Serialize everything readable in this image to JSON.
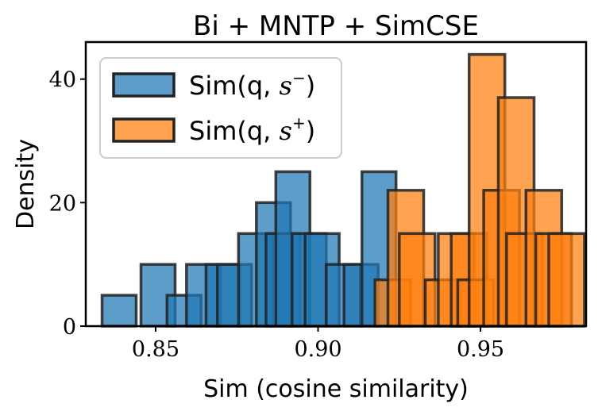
{
  "chart_data": {
    "type": "bar",
    "title": "Bi + MNTP + SimCSE",
    "xlabel": "Sim (cosine similarity)",
    "ylabel": "Density",
    "xlim": [
      0.8285,
      0.9825
    ],
    "ylim": [
      0,
      46
    ],
    "xticks": [
      0.85,
      0.9,
      0.95
    ],
    "xtick_labels": [
      "0.85",
      "0.90",
      "0.95"
    ],
    "yticks": [
      0,
      20,
      40
    ],
    "ytick_labels": [
      "0",
      "20",
      "40"
    ],
    "legend_position": "top-left",
    "series": [
      {
        "name": "Sim(q, s−)",
        "legend_prefix": "Sim(q, ",
        "legend_var": "s",
        "legend_sup": "−",
        "legend_suffix": ")",
        "color": "#1f77b4",
        "bars": [
          {
            "left": 0.8335,
            "right": 0.844,
            "height": 5
          },
          {
            "left": 0.8455,
            "right": 0.856,
            "height": 10
          },
          {
            "left": 0.8535,
            "right": 0.864,
            "height": 5
          },
          {
            "left": 0.8595,
            "right": 0.87,
            "height": 10
          },
          {
            "left": 0.8655,
            "right": 0.876,
            "height": 10
          },
          {
            "left": 0.869,
            "right": 0.8795,
            "height": 10
          },
          {
            "left": 0.8755,
            "right": 0.886,
            "height": 15
          },
          {
            "left": 0.881,
            "right": 0.8915,
            "height": 20
          },
          {
            "left": 0.884,
            "right": 0.8945,
            "height": 15
          },
          {
            "left": 0.887,
            "right": 0.8975,
            "height": 25
          },
          {
            "left": 0.892,
            "right": 0.9025,
            "height": 15
          },
          {
            "left": 0.896,
            "right": 0.9065,
            "height": 15
          },
          {
            "left": 0.9025,
            "right": 0.913,
            "height": 10
          },
          {
            "left": 0.908,
            "right": 0.9185,
            "height": 10
          },
          {
            "left": 0.9135,
            "right": 0.924,
            "height": 25
          }
        ]
      },
      {
        "name": "Sim(q, s+)",
        "legend_prefix": "Sim(q, ",
        "legend_var": "s",
        "legend_sup": "+",
        "legend_suffix": ")",
        "color": "#ff7f0e",
        "bars": [
          {
            "left": 0.9175,
            "right": 0.9285,
            "height": 7.5
          },
          {
            "left": 0.9215,
            "right": 0.9325,
            "height": 22
          },
          {
            "left": 0.925,
            "right": 0.936,
            "height": 15
          },
          {
            "left": 0.933,
            "right": 0.944,
            "height": 7.5
          },
          {
            "left": 0.937,
            "right": 0.948,
            "height": 15
          },
          {
            "left": 0.941,
            "right": 0.952,
            "height": 15
          },
          {
            "left": 0.943,
            "right": 0.954,
            "height": 7.5
          },
          {
            "left": 0.9465,
            "right": 0.9575,
            "height": 44
          },
          {
            "left": 0.951,
            "right": 0.962,
            "height": 22
          },
          {
            "left": 0.9555,
            "right": 0.9665,
            "height": 37
          },
          {
            "left": 0.958,
            "right": 0.969,
            "height": 15
          },
          {
            "left": 0.964,
            "right": 0.975,
            "height": 22
          },
          {
            "left": 0.967,
            "right": 0.978,
            "height": 15
          },
          {
            "left": 0.971,
            "right": 0.982,
            "height": 15
          }
        ]
      }
    ]
  }
}
